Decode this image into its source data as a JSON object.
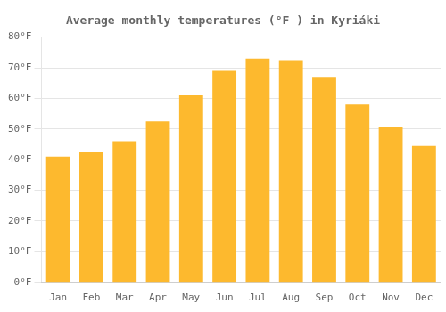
{
  "chart_data": {
    "type": "bar",
    "title": "Average monthly temperatures (°F ) in Kyriáki",
    "categories": [
      "Jan",
      "Feb",
      "Mar",
      "Apr",
      "May",
      "Jun",
      "Jul",
      "Aug",
      "Sep",
      "Oct",
      "Nov",
      "Dec"
    ],
    "values": [
      41,
      42.5,
      46,
      52.5,
      61,
      69,
      73,
      72.5,
      67,
      58,
      50.5,
      44.5
    ],
    "color": "#FDB92E",
    "ylim": [
      0,
      80
    ],
    "yticks": [
      {
        "value": 0,
        "label": "0°F"
      },
      {
        "value": 10,
        "label": "10°F"
      },
      {
        "value": 20,
        "label": "20°F"
      },
      {
        "value": 30,
        "label": "30°F"
      },
      {
        "value": 40,
        "label": "40°F"
      },
      {
        "value": 50,
        "label": "50°F"
      },
      {
        "value": 60,
        "label": "60°F"
      },
      {
        "value": 70,
        "label": "70°F"
      },
      {
        "value": 80,
        "label": "80°F"
      }
    ],
    "grid": true
  }
}
